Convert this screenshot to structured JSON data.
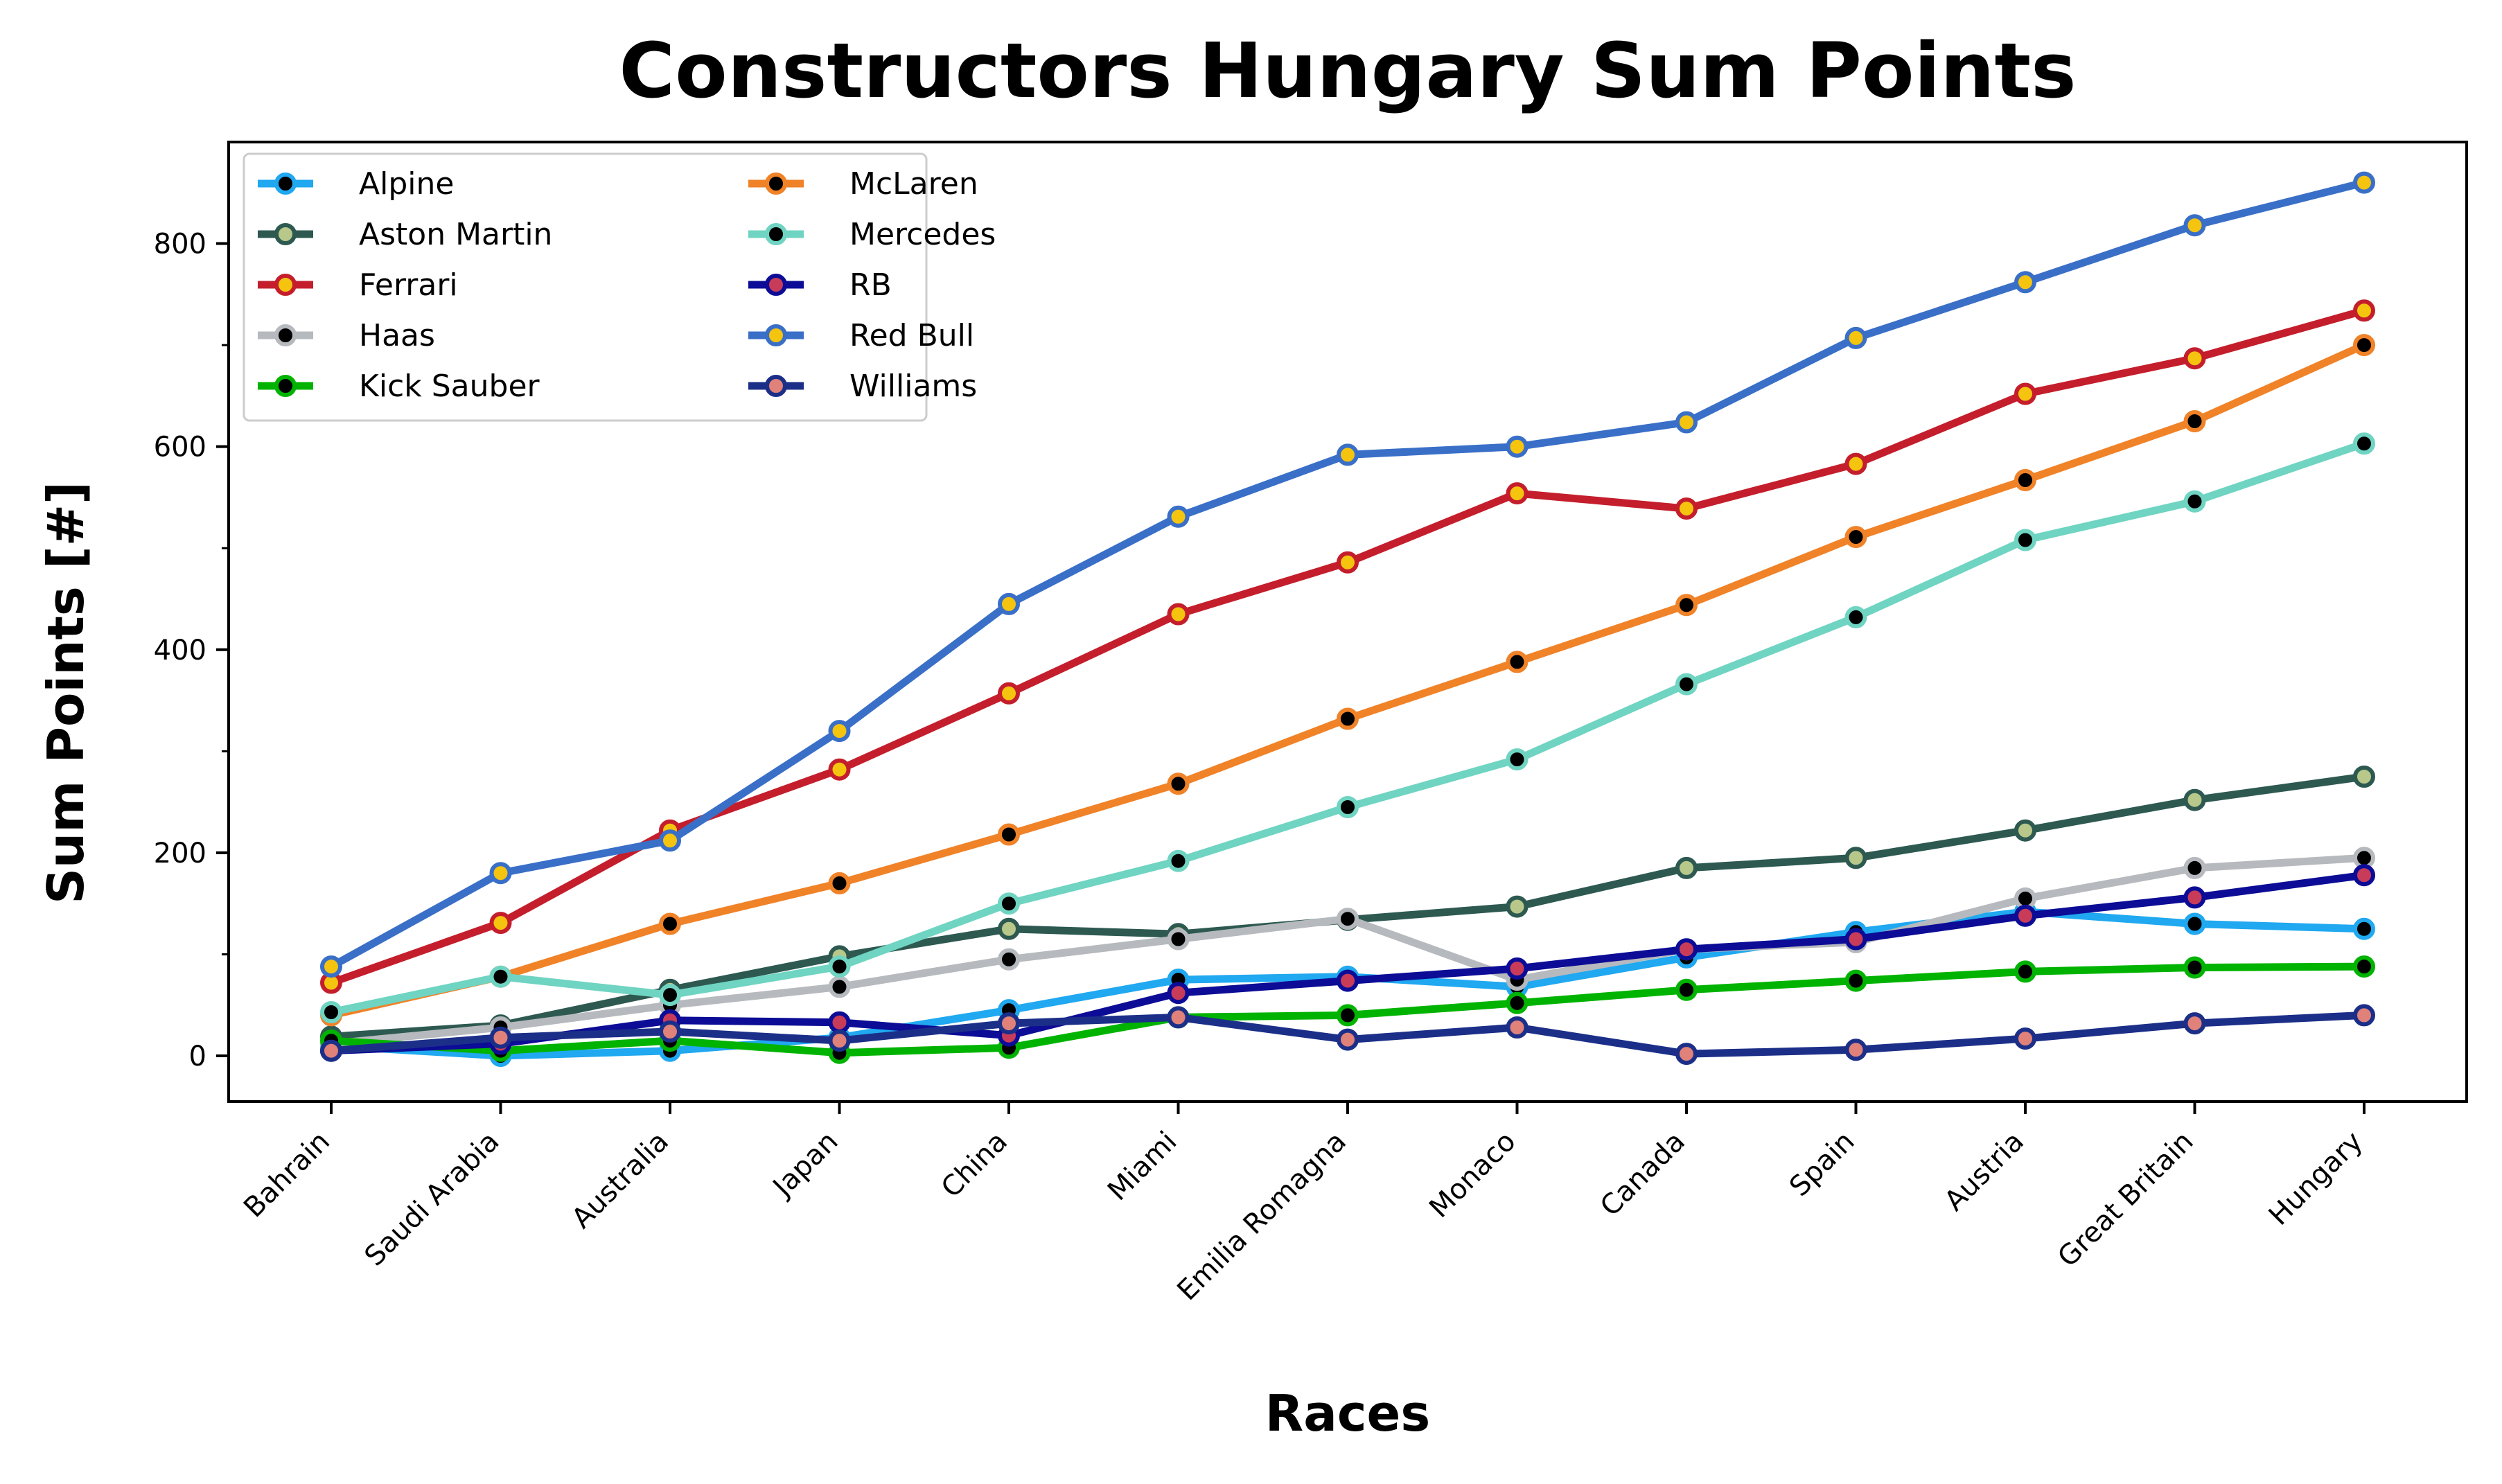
{
  "chart_data": {
    "type": "line",
    "title": "Constructors Hungary Sum Points",
    "xlabel": "Races",
    "ylabel": "Sum Points [#]",
    "categories": [
      "Bahrain",
      "Saudi Arabia",
      "Australia",
      "Japan",
      "China",
      "Miami",
      "Emilia Romagna",
      "Monaco",
      "Canada",
      "Spain",
      "Austria",
      "Great Britain",
      "Hungary"
    ],
    "ylim": [
      -45,
      900
    ],
    "yticks": [
      0,
      200,
      400,
      600,
      800
    ],
    "grid": false,
    "legend_position": "upper-left",
    "legend_columns": 2,
    "series": [
      {
        "name": "Alpine",
        "line_color": "#20a8f0",
        "marker_face": "#000000",
        "marker_edge": "#20a8f0",
        "values": [
          10,
          0,
          5,
          18,
          45,
          75,
          78,
          68,
          97,
          122,
          142,
          130,
          125
        ]
      },
      {
        "name": "Aston Martin",
        "line_color": "#2d5951",
        "marker_face": "#b8c88a",
        "marker_edge": "#2d5951",
        "values": [
          19,
          30,
          65,
          98,
          125,
          120,
          134,
          147,
          185,
          195,
          222,
          252,
          275
        ]
      },
      {
        "name": "Ferrari",
        "line_color": "#c41e2c",
        "marker_face": "#f5c40f",
        "marker_edge": "#c41e2c",
        "values": [
          72,
          131,
          222,
          282,
          357,
          435,
          486,
          554,
          539,
          583,
          652,
          687,
          734
        ]
      },
      {
        "name": "Haas",
        "line_color": "#b6b9bd",
        "marker_face": "#000000",
        "marker_edge": "#b6b9bd",
        "values": [
          12,
          28,
          50,
          68,
          95,
          115,
          135,
          75,
          105,
          112,
          155,
          185,
          195
        ]
      },
      {
        "name": "Kick Sauber",
        "line_color": "#00b300",
        "marker_face": "#000000",
        "marker_edge": "#00b300",
        "values": [
          15,
          5,
          15,
          3,
          8,
          38,
          40,
          52,
          65,
          74,
          83,
          87,
          88
        ]
      },
      {
        "name": "McLaren",
        "line_color": "#f08228",
        "marker_face": "#000000",
        "marker_edge": "#f08228",
        "values": [
          40,
          78,
          130,
          170,
          218,
          268,
          332,
          388,
          444,
          511,
          567,
          625,
          700
        ]
      },
      {
        "name": "Mercedes",
        "line_color": "#6fd4c2",
        "marker_face": "#000000",
        "marker_edge": "#6fd4c2",
        "values": [
          43,
          78,
          60,
          88,
          150,
          192,
          245,
          292,
          366,
          432,
          508,
          546,
          603
        ]
      },
      {
        "name": "RB",
        "line_color": "#0c0c96",
        "marker_face": "#c83c5a",
        "marker_edge": "#0c0c96",
        "values": [
          5,
          12,
          35,
          33,
          20,
          62,
          74,
          86,
          105,
          115,
          138,
          156,
          178
        ]
      },
      {
        "name": "Red Bull",
        "line_color": "#3a6fc8",
        "marker_face": "#f5c40f",
        "marker_edge": "#3a6fc8",
        "values": [
          88,
          180,
          212,
          320,
          445,
          531,
          592,
          600,
          624,
          707,
          762,
          818,
          860
        ]
      },
      {
        "name": "Williams",
        "line_color": "#1c2f88",
        "marker_face": "#e0817a",
        "marker_edge": "#1c2f88",
        "values": [
          5,
          18,
          24,
          15,
          32,
          38,
          16,
          28,
          2,
          6,
          17,
          32,
          40
        ]
      }
    ]
  }
}
